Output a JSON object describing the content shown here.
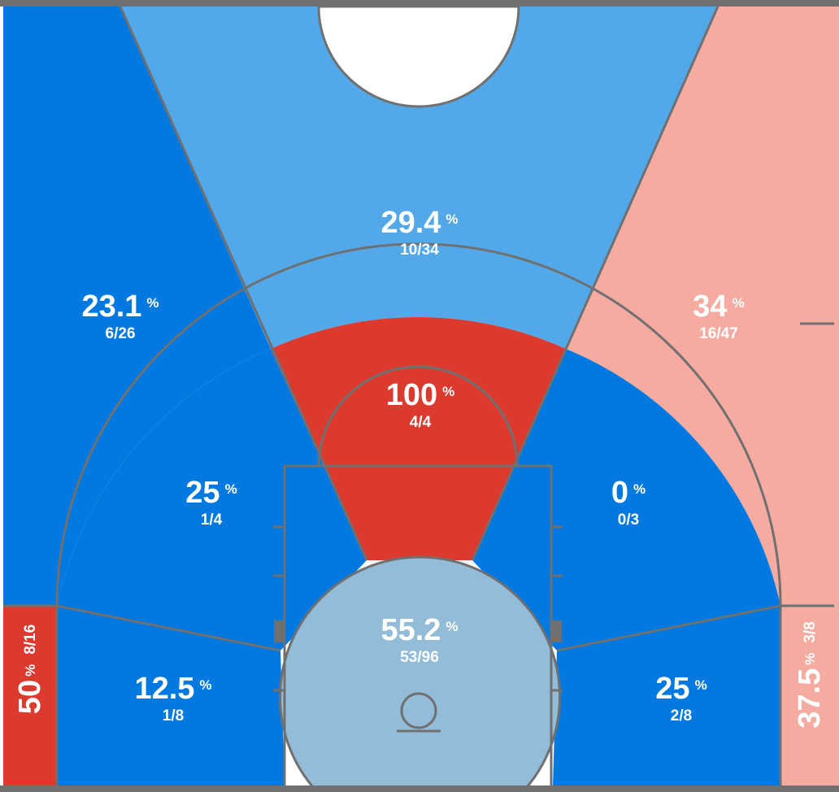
{
  "chart_data": {
    "type": "shot-chart",
    "colors": {
      "hot": "#dc3a2f",
      "warm": "#f6aba1",
      "cold": "#0179e0",
      "cool": "#52a8e8",
      "neutral": "#93bcd9",
      "lines": "#707070"
    },
    "zones": [
      {
        "id": "restricted-area",
        "pct": "55.2",
        "frac": "53/96",
        "made": 53,
        "attempts": 96,
        "color": "neutral"
      },
      {
        "id": "paint-non-ra",
        "pct": "100",
        "frac": "4/4",
        "made": 4,
        "attempts": 4,
        "color": "hot"
      },
      {
        "id": "mid-range-left",
        "pct": "25",
        "frac": "1/4",
        "made": 1,
        "attempts": 4,
        "color": "cold"
      },
      {
        "id": "mid-range-right",
        "pct": "0",
        "frac": "0/3",
        "made": 0,
        "attempts": 3,
        "color": "cold"
      },
      {
        "id": "baseline-mid-left",
        "pct": "12.5",
        "frac": "1/8",
        "made": 1,
        "attempts": 8,
        "color": "cold"
      },
      {
        "id": "baseline-mid-right",
        "pct": "25",
        "frac": "2/8",
        "made": 2,
        "attempts": 8,
        "color": "cold"
      },
      {
        "id": "above-break-three-left",
        "pct": "23.1",
        "frac": "6/26",
        "made": 6,
        "attempts": 26,
        "color": "cold"
      },
      {
        "id": "above-break-three-center",
        "pct": "29.4",
        "frac": "10/34",
        "made": 10,
        "attempts": 34,
        "color": "cool"
      },
      {
        "id": "above-break-three-right",
        "pct": "34",
        "frac": "16/47",
        "made": 16,
        "attempts": 47,
        "color": "warm"
      },
      {
        "id": "corner-three-left",
        "pct": "50",
        "frac": "8/16",
        "made": 8,
        "attempts": 16,
        "color": "hot"
      },
      {
        "id": "corner-three-right",
        "pct": "37.5",
        "frac": "3/8",
        "made": 3,
        "attempts": 8,
        "color": "warm"
      }
    ],
    "percent_sign": "%"
  }
}
